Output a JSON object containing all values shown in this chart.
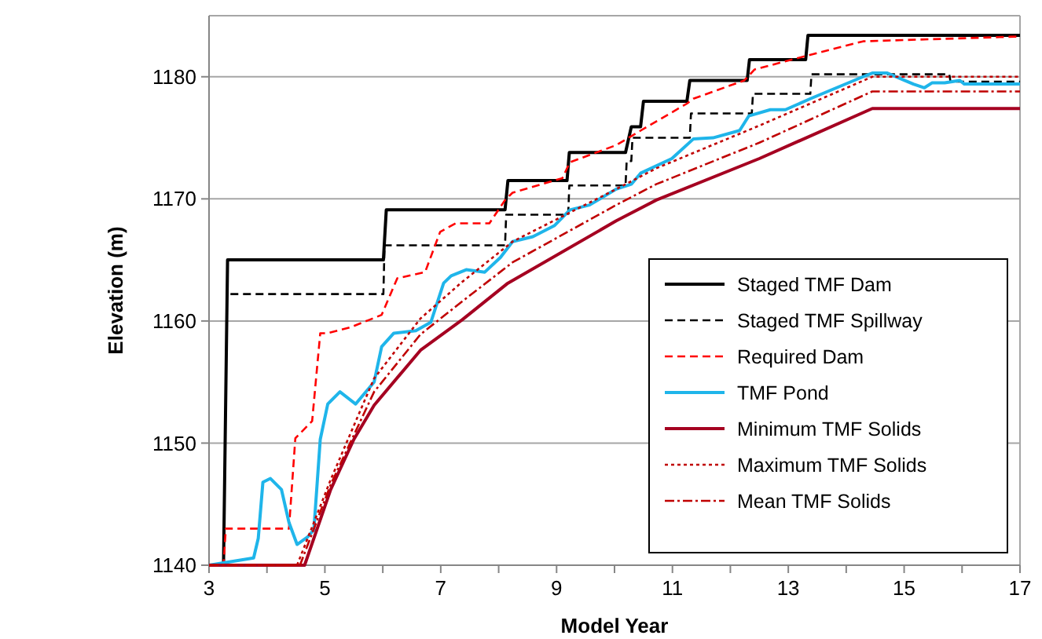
{
  "chart_data": {
    "type": "line",
    "xlabel": "Model Year",
    "ylabel": "Elevation (m)",
    "xlim": [
      3,
      17
    ],
    "ylim": [
      1140,
      1185
    ],
    "xticks": [
      3,
      {
        "value": 4,
        "label": null
      },
      5,
      {
        "value": 6,
        "label": null
      },
      7,
      {
        "value": 8,
        "label": null
      },
      9,
      {
        "value": 10,
        "label": null
      },
      11,
      {
        "value": 12,
        "label": null
      },
      13,
      {
        "value": 14,
        "label": null
      },
      15,
      {
        "value": 16,
        "label": null
      },
      17
    ],
    "yticks": [
      1140,
      1150,
      1160,
      1170,
      1180
    ],
    "grid": "y",
    "legend": "bottom right",
    "marker": "none",
    "series": [
      {
        "name": "Staged TMF Dam",
        "color": "#000000",
        "line_style": "solid",
        "x": [
          3,
          3.25,
          3.32,
          6.01,
          6.06,
          8.11,
          8.16,
          9.18,
          9.22,
          10.19,
          10.29,
          10.45,
          10.5,
          11.25,
          11.3,
          12.29,
          12.33,
          13.3,
          13.34,
          17
        ],
        "values": [
          1140,
          1140,
          1165,
          1165,
          1169.1,
          1169.1,
          1171.5,
          1171.5,
          1173.8,
          1173.8,
          1175.9,
          1175.9,
          1178,
          1178,
          1179.7,
          1179.7,
          1181.4,
          1181.4,
          1183.4,
          1183.4
        ]
      },
      {
        "name": "Staged TMF Spillway",
        "color": "#000000",
        "line_style": "dashed",
        "x": [
          3.37,
          6.01,
          6.03,
          8.11,
          8.13,
          9.2,
          9.22,
          10.19,
          10.21,
          10.29,
          10.31,
          11.3,
          11.32,
          12.37,
          12.39,
          13.38,
          13.4,
          15.78,
          15.8,
          17
        ],
        "values": [
          1162.2,
          1162.2,
          1166.2,
          1166.2,
          1168.7,
          1168.7,
          1171.1,
          1171.1,
          1173.1,
          1173.1,
          1175,
          1175,
          1177,
          1177,
          1178.6,
          1178.6,
          1180.2,
          1180.2,
          1179.6,
          1179.6
        ]
      },
      {
        "name": "Required Dam",
        "color": "#ff0000",
        "line_style": "dashed",
        "x": [
          3,
          3.25,
          3.29,
          4.38,
          4.49,
          4.78,
          4.92,
          5.05,
          5.45,
          5.77,
          5.98,
          6.25,
          6.73,
          6.99,
          7.26,
          7.84,
          8.11,
          8.24,
          9.1,
          9.23,
          10.03,
          10.56,
          11.25,
          11.36,
          12.24,
          12.42,
          13.3,
          14.29,
          17
        ],
        "values": [
          1140,
          1140,
          1143,
          1143,
          1150.4,
          1151.8,
          1159,
          1159,
          1159.5,
          1160.1,
          1160.5,
          1163.5,
          1164,
          1167.3,
          1168,
          1168,
          1169.9,
          1170.5,
          1171.7,
          1173,
          1174.4,
          1175.9,
          1177.8,
          1178.2,
          1179.7,
          1180.6,
          1181.7,
          1182.9,
          1183.3
        ]
      },
      {
        "name": "TMF Pond",
        "color": "#1fb5ea",
        "line_style": "solid",
        "x": [
          3,
          3.77,
          3.85,
          3.93,
          4.06,
          4.25,
          4.38,
          4.52,
          4.7,
          4.81,
          4.92,
          5.05,
          5.26,
          5.53,
          5.85,
          5.98,
          6.19,
          6.57,
          6.83,
          7.05,
          7.18,
          7.44,
          7.76,
          8.03,
          8.24,
          8.59,
          8.96,
          9.23,
          9.57,
          10.03,
          10.29,
          10.45,
          10.99,
          11.36,
          11.7,
          12.16,
          12.32,
          12.69,
          12.95,
          13.38,
          14.29,
          14.45,
          14.71,
          15.16,
          15.35,
          15.48,
          15.7,
          15.96,
          16.04,
          17
        ],
        "values": [
          1140,
          1140.6,
          1142.2,
          1146.8,
          1147.1,
          1146.2,
          1143.5,
          1141.7,
          1142.3,
          1142.9,
          1150.3,
          1153.2,
          1154.2,
          1153.2,
          1155,
          1157.9,
          1159,
          1159.2,
          1159.9,
          1163.1,
          1163.7,
          1164.2,
          1164,
          1165.2,
          1166.5,
          1166.9,
          1167.8,
          1169.1,
          1169.5,
          1170.8,
          1171.2,
          1172.1,
          1173.3,
          1174.9,
          1175,
          1175.6,
          1176.8,
          1177.3,
          1177.3,
          1178.2,
          1180,
          1180.3,
          1180.3,
          1179.4,
          1179.1,
          1179.5,
          1179.5,
          1179.7,
          1179.4,
          1179.4
        ]
      },
      {
        "name": "Minimum TMF Solids",
        "color": "#a50021",
        "line_style": "solid",
        "x": [
          3,
          4.65,
          5.1,
          5.5,
          5.85,
          6.65,
          7.37,
          8.16,
          10.03,
          10.72,
          12.5,
          14.45,
          17
        ],
        "values": [
          1140,
          1140,
          1146.2,
          1150.3,
          1153.1,
          1157.6,
          1160.1,
          1163.1,
          1168.2,
          1169.9,
          1173.3,
          1177.4,
          1177.4
        ]
      },
      {
        "name": "Maximum TMF Solids",
        "color": "#c00000",
        "line_style": "dotted",
        "x": [
          3,
          4.52,
          5.1,
          5.85,
          6.65,
          7.37,
          8.24,
          10.03,
          10.72,
          12.5,
          14.45,
          17
        ],
        "values": [
          1140,
          1140,
          1147,
          1155.3,
          1160.2,
          1163.2,
          1166.5,
          1170.8,
          1172.5,
          1176,
          1180,
          1180
        ]
      },
      {
        "name": "Mean TMF Solids",
        "color": "#c00000",
        "line_style": "dashdot",
        "x": [
          3,
          4.57,
          5.1,
          5.85,
          6.65,
          7.37,
          8.24,
          10.03,
          10.72,
          12.5,
          14.45,
          17
        ],
        "values": [
          1140,
          1140,
          1146.6,
          1154.2,
          1158.9,
          1161.6,
          1164.8,
          1169.5,
          1171.2,
          1174.6,
          1178.8,
          1178.8
        ]
      }
    ]
  }
}
